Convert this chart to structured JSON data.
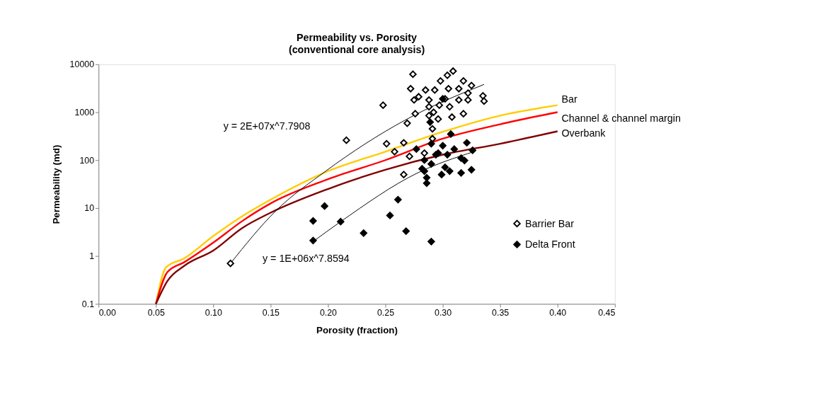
{
  "chart_data": {
    "type": "scatter",
    "title": "Permeability vs. Porosity",
    "subtitle": "(conventional core analysis)",
    "xlabel": "Porosity (fraction)",
    "ylabel": "Permeability (md)",
    "log": "y",
    "grid": false,
    "legend": "right",
    "xlim": [
      0,
      0.45
    ],
    "xticks": [
      {
        "value": 0,
        "label": "0.00"
      },
      {
        "value": 0.05,
        "label": "0.05"
      },
      {
        "value": 0.1,
        "label": "0.10"
      },
      {
        "value": 0.15,
        "label": "0.15"
      },
      {
        "value": 0.2,
        "label": "0.20"
      },
      {
        "value": 0.25,
        "label": "0.25"
      },
      {
        "value": 0.3,
        "label": "0.30"
      },
      {
        "value": 0.35,
        "label": "0.35"
      },
      {
        "value": 0.4,
        "label": "0.40"
      },
      {
        "value": 0.45,
        "label": "0.45"
      }
    ],
    "ylim": [
      0.1,
      10000
    ],
    "yticks": [
      0.1,
      1,
      10,
      100,
      1000,
      10000
    ],
    "series": [
      {
        "type": "line",
        "name": "Bar",
        "color": "#ffcc00",
        "marker": "none",
        "x": [
          0.05,
          0.0588,
          0.075,
          0.1,
          0.125,
          0.15,
          0.2,
          0.25,
          0.3,
          0.35,
          0.4
        ],
        "values": [
          0.1,
          0.58,
          0.9,
          2.6,
          6.7,
          15,
          59,
          150,
          390,
          850,
          1400
        ]
      },
      {
        "type": "line",
        "name": "Channel & channel margin",
        "color": "#ff0000",
        "marker": "none",
        "x": [
          0.05,
          0.06,
          0.075,
          0.1,
          0.125,
          0.15,
          0.2,
          0.25,
          0.3,
          0.35,
          0.4
        ],
        "values": [
          0.1,
          0.46,
          0.75,
          1.9,
          5.3,
          12.5,
          40,
          100,
          280,
          560,
          1000
        ]
      },
      {
        "type": "line",
        "name": "Overbank",
        "color": "#800000",
        "marker": "none",
        "x": [
          0.05,
          0.06,
          0.075,
          0.1,
          0.125,
          0.15,
          0.2,
          0.25,
          0.3,
          0.35,
          0.4
        ],
        "values": [
          0.1,
          0.3,
          0.63,
          1.3,
          3.8,
          8,
          25,
          63,
          130,
          220,
          400
        ]
      },
      {
        "type": "line",
        "color": "#000000",
        "marker": "none",
        "x": [
          0.115,
          0.154,
          0.198,
          0.267,
          0.336
        ],
        "values": [
          0.7,
          8.5,
          59,
          680,
          3800
        ]
      },
      {
        "type": "line",
        "color": "#000000",
        "marker": "none",
        "x": [
          0.187,
          0.211,
          0.278,
          0.327
        ],
        "values": [
          2.0,
          5.2,
          54,
          150
        ]
      },
      {
        "type": "scatter",
        "name": "Barrier Bar",
        "color": "#ffffff",
        "marker": "diamond",
        "x": [
          0.115,
          0.216,
          0.274,
          0.272,
          0.248,
          0.276,
          0.269,
          0.251,
          0.266,
          0.258,
          0.271,
          0.266,
          0.291,
          0.291,
          0.284,
          0.309,
          0.304,
          0.298,
          0.318,
          0.325,
          0.285,
          0.293,
          0.305,
          0.314,
          0.322,
          0.279,
          0.288,
          0.302,
          0.314,
          0.335,
          0.336,
          0.275,
          0.288,
          0.297,
          0.306,
          0.322,
          0.288,
          0.296,
          0.308,
          0.318,
          0.292
        ],
        "values": [
          0.7,
          260,
          6200,
          3100,
          1400,
          930,
          590,
          220,
          230,
          150,
          120,
          50,
          450,
          280,
          140,
          7200,
          5900,
          4500,
          4500,
          3600,
          2900,
          2900,
          3100,
          3100,
          2500,
          2100,
          1800,
          1900,
          1800,
          2200,
          1700,
          1800,
          1300,
          1400,
          1300,
          1800,
          850,
          720,
          790,
          930,
          1000
        ]
      },
      {
        "type": "scatter",
        "name": "Delta Front",
        "color": "#000000",
        "marker": "diamond",
        "x": [
          0.197,
          0.187,
          0.211,
          0.187,
          0.231,
          0.261,
          0.254,
          0.268,
          0.29,
          0.307,
          0.277,
          0.321,
          0.326,
          0.29,
          0.3,
          0.31,
          0.296,
          0.304,
          0.316,
          0.284,
          0.29,
          0.302,
          0.319,
          0.284,
          0.286,
          0.286,
          0.299,
          0.306,
          0.316,
          0.325,
          0.282,
          0.294,
          0.3,
          0.289
        ],
        "values": [
          11,
          5.4,
          5.2,
          2.1,
          3.0,
          15,
          7.0,
          3.3,
          2.0,
          350,
          170,
          230,
          160,
          220,
          200,
          170,
          140,
          130,
          110,
          100,
          83,
          71,
          98,
          59,
          43,
          33,
          50,
          59,
          54,
          63,
          66,
          130,
          1900,
          620
        ]
      }
    ],
    "annotations": [
      "y = 2E+07x^7.7908",
      "y = 1E+06x^7.8594"
    ]
  }
}
